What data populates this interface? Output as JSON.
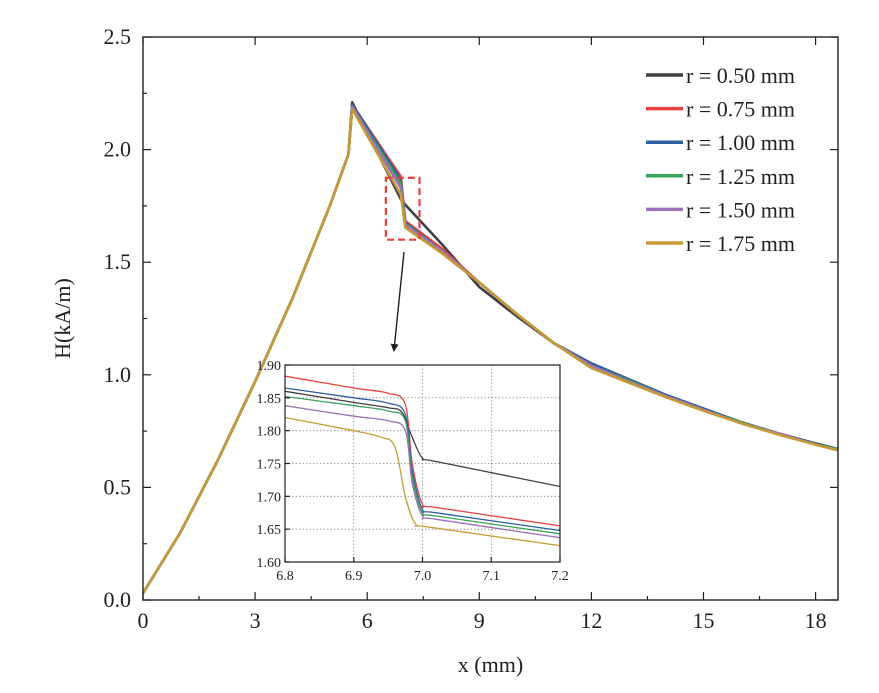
{
  "chart_data": [
    {
      "type": "line",
      "xlabel": "x (mm)",
      "ylabel": "H(kA/m)",
      "xlim": [
        0,
        18.6
      ],
      "ylim": [
        0,
        2.5
      ],
      "x_ticks": [
        "0",
        "3",
        "6",
        "9",
        "12",
        "15",
        "18"
      ],
      "y_ticks": [
        "0.0",
        "0.5",
        "1.0",
        "1.5",
        "2.0",
        "2.5"
      ],
      "legend_position": "top-right",
      "series": [
        {
          "name": "r = 0.50 mm",
          "color": "#3f3f3f",
          "x": [
            0,
            1,
            2,
            3,
            4,
            5,
            5.5,
            5.6,
            6.9,
            7.02,
            8,
            9,
            10,
            11,
            12,
            13,
            14,
            15,
            16,
            17,
            18,
            18.6
          ],
          "y": [
            0.03,
            0.3,
            0.62,
            0.97,
            1.34,
            1.75,
            1.98,
            2.21,
            1.78,
            1.755,
            1.58,
            1.39,
            1.26,
            1.14,
            1.05,
            0.98,
            0.91,
            0.85,
            0.79,
            0.74,
            0.695,
            0.67
          ]
        },
        {
          "name": "r = 0.75 mm",
          "color": "#e8403e",
          "x": [
            0,
            1,
            2,
            3,
            4,
            5,
            5.5,
            5.6,
            6.9,
            7.02,
            8,
            9,
            10,
            11,
            12,
            13,
            14,
            15,
            16,
            17,
            18,
            18.6
          ],
          "y": [
            0.03,
            0.3,
            0.62,
            0.97,
            1.34,
            1.75,
            1.98,
            2.2,
            1.88,
            1.683,
            1.56,
            1.41,
            1.27,
            1.14,
            1.05,
            0.98,
            0.91,
            0.85,
            0.79,
            0.74,
            0.695,
            0.67
          ]
        },
        {
          "name": "r = 1.00 mm",
          "color": "#2c5fa0",
          "x": [
            0,
            1,
            2,
            3,
            4,
            5,
            5.5,
            5.6,
            6.9,
            7.02,
            8,
            9,
            10,
            11,
            12,
            13,
            14,
            15,
            16,
            17,
            18,
            18.6
          ],
          "y": [
            0.03,
            0.3,
            0.62,
            0.97,
            1.34,
            1.75,
            1.98,
            2.2,
            1.865,
            1.675,
            1.55,
            1.41,
            1.27,
            1.14,
            1.05,
            0.98,
            0.91,
            0.85,
            0.79,
            0.74,
            0.695,
            0.67
          ]
        },
        {
          "name": "r = 1.25 mm",
          "color": "#3aa25a",
          "x": [
            0,
            1,
            2,
            3,
            4,
            5,
            5.5,
            5.6,
            6.9,
            7.02,
            8,
            9,
            10,
            11,
            12,
            13,
            14,
            15,
            16,
            17,
            18,
            18.6
          ],
          "y": [
            0.03,
            0.3,
            0.62,
            0.97,
            1.34,
            1.75,
            1.98,
            2.19,
            1.85,
            1.67,
            1.55,
            1.41,
            1.27,
            1.14,
            1.04,
            0.975,
            0.905,
            0.845,
            0.79,
            0.74,
            0.69,
            0.67
          ]
        },
        {
          "name": "r = 1.50 mm",
          "color": "#9b72b8",
          "x": [
            0,
            1,
            2,
            3,
            4,
            5,
            5.5,
            5.6,
            6.9,
            7.02,
            8,
            9,
            10,
            11,
            12,
            13,
            14,
            15,
            16,
            17,
            18,
            18.6
          ],
          "y": [
            0.03,
            0.3,
            0.62,
            0.97,
            1.34,
            1.75,
            1.98,
            2.19,
            1.83,
            1.665,
            1.55,
            1.41,
            1.27,
            1.14,
            1.04,
            0.97,
            0.905,
            0.845,
            0.785,
            0.74,
            0.69,
            0.665
          ]
        },
        {
          "name": "r = 1.75 mm",
          "color": "#c79a35",
          "x": [
            0,
            1,
            2,
            3,
            4,
            5,
            5.5,
            5.6,
            6.9,
            7.02,
            8,
            9,
            10,
            11,
            12,
            13,
            14,
            15,
            16,
            17,
            18,
            18.6
          ],
          "y": [
            0.03,
            0.3,
            0.62,
            0.97,
            1.34,
            1.75,
            1.98,
            2.18,
            1.8,
            1.653,
            1.54,
            1.41,
            1.27,
            1.14,
            1.03,
            0.965,
            0.9,
            0.84,
            0.785,
            0.735,
            0.69,
            0.665
          ]
        }
      ]
    },
    {
      "type": "line",
      "xlim": [
        6.8,
        7.2
      ],
      "ylim": [
        1.6,
        1.9
      ],
      "x_ticks": [
        "6.8",
        "6.9",
        "7.0",
        "7.1",
        "7.2"
      ],
      "y_ticks": [
        "1.60",
        "1.65",
        "1.70",
        "1.75",
        "1.80",
        "1.85",
        "1.90"
      ],
      "grid": true,
      "series": [
        {
          "name": "r = 0.50 mm",
          "color": "#3f3f3f",
          "x": [
            6.8,
            6.9,
            6.95,
            6.97,
            6.985,
            7.0,
            7.02,
            7.2
          ],
          "y": [
            1.86,
            1.843,
            1.835,
            1.828,
            1.79,
            1.758,
            1.753,
            1.715
          ]
        },
        {
          "name": "r = 0.75 mm",
          "color": "#e8403e",
          "x": [
            6.8,
            6.9,
            6.95,
            6.975,
            6.985,
            7.0,
            7.02,
            7.2
          ],
          "y": [
            1.883,
            1.865,
            1.857,
            1.84,
            1.75,
            1.688,
            1.683,
            1.655
          ]
        },
        {
          "name": "r = 1.00 mm",
          "color": "#2c5fa0",
          "x": [
            6.8,
            6.9,
            6.95,
            6.975,
            6.985,
            7.0,
            7.02,
            7.2
          ],
          "y": [
            1.865,
            1.85,
            1.842,
            1.825,
            1.74,
            1.68,
            1.675,
            1.648
          ]
        },
        {
          "name": "r = 1.25 mm",
          "color": "#3aa25a",
          "x": [
            6.8,
            6.9,
            6.95,
            6.975,
            6.985,
            7.0,
            7.02,
            7.2
          ],
          "y": [
            1.852,
            1.838,
            1.83,
            1.815,
            1.73,
            1.675,
            1.67,
            1.643
          ]
        },
        {
          "name": "r = 1.50 mm",
          "color": "#9b72b8",
          "x": [
            6.8,
            6.9,
            6.95,
            6.975,
            6.985,
            7.0,
            7.02,
            7.2
          ],
          "y": [
            1.838,
            1.822,
            1.815,
            1.8,
            1.72,
            1.67,
            1.665,
            1.637
          ]
        },
        {
          "name": "r = 1.75 mm",
          "color": "#c79a35",
          "x": [
            6.8,
            6.9,
            6.94,
            6.96,
            6.975,
            6.99,
            7.01,
            7.2
          ],
          "y": [
            1.82,
            1.8,
            1.79,
            1.775,
            1.7,
            1.658,
            1.653,
            1.625
          ]
        }
      ]
    }
  ]
}
